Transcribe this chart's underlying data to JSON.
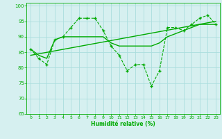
{
  "xlabel": "Humidité relative (%)",
  "background_color": "#d6f0f0",
  "grid_color": "#aadddd",
  "line_color": "#00aa00",
  "xlim": [
    -0.5,
    23.5
  ],
  "ylim": [
    65,
    101
  ],
  "yticks": [
    65,
    70,
    75,
    80,
    85,
    90,
    95,
    100
  ],
  "xticks": [
    0,
    1,
    2,
    3,
    4,
    5,
    6,
    7,
    8,
    9,
    10,
    11,
    12,
    13,
    14,
    15,
    16,
    17,
    18,
    19,
    20,
    21,
    22,
    23
  ],
  "series1_x": [
    0,
    1,
    2,
    3,
    4,
    5,
    6,
    7,
    8,
    9,
    10,
    11,
    12,
    13,
    14,
    15,
    16,
    17,
    18,
    19,
    20,
    21,
    22,
    23
  ],
  "series1_y": [
    86,
    83,
    81,
    89,
    90,
    93,
    96,
    96,
    96,
    92,
    87,
    84,
    79,
    81,
    81,
    74,
    79,
    93,
    93,
    92,
    94,
    96,
    97,
    94
  ],
  "series2_x": [
    0,
    23
  ],
  "series2_y": [
    84,
    95
  ],
  "series3_x": [
    0,
    1,
    2,
    3,
    4,
    5,
    6,
    7,
    8,
    9,
    10,
    11,
    12,
    13,
    14,
    15,
    16,
    17,
    18,
    19,
    20,
    21,
    22,
    23
  ],
  "series3_y": [
    86,
    84,
    83,
    89,
    90,
    90,
    90,
    90,
    90,
    90,
    88,
    87,
    87,
    87,
    87,
    87,
    88,
    90,
    91,
    92,
    93,
    94,
    94,
    94
  ]
}
